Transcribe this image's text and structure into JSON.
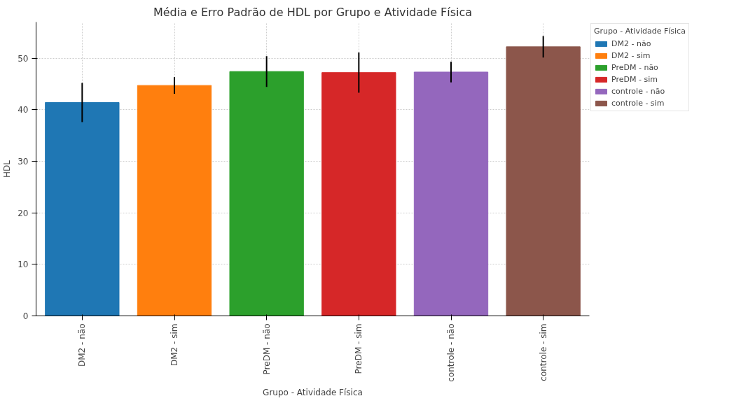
{
  "chart_data": {
    "type": "bar",
    "title": "Média e Erro Padrão de HDL por Grupo e Atividade Física",
    "xlabel": "Grupo - Atividade Física",
    "ylabel": "HDL",
    "legend_title": "Grupo - Atividade Física",
    "categories": [
      "DM2 - não",
      "DM2 - sim",
      "PreDM - não",
      "PreDM - sim",
      "controle - não",
      "controle - sim"
    ],
    "series": [
      {
        "name": "DM2 - não",
        "color": "#1f77b4",
        "values": [
          41.4,
          null,
          null,
          null,
          null,
          null
        ],
        "errors": [
          3.8,
          null,
          null,
          null,
          null,
          null
        ]
      },
      {
        "name": "DM2 - sim",
        "color": "#ff7f0e",
        "values": [
          null,
          44.7,
          null,
          null,
          null,
          null
        ],
        "errors": [
          null,
          1.6,
          null,
          null,
          null,
          null
        ]
      },
      {
        "name": "PreDM - não",
        "color": "#2ca02c",
        "values": [
          null,
          null,
          47.4,
          null,
          null,
          null
        ],
        "errors": [
          null,
          null,
          3.0,
          null,
          null,
          null
        ]
      },
      {
        "name": "PreDM - sim",
        "color": "#d62728",
        "values": [
          null,
          null,
          null,
          47.2,
          null,
          null
        ],
        "errors": [
          null,
          null,
          null,
          3.9,
          null,
          null
        ]
      },
      {
        "name": "controle - não",
        "color": "#9467bd",
        "values": [
          null,
          null,
          null,
          null,
          47.3,
          null
        ],
        "errors": [
          null,
          null,
          null,
          null,
          2.0,
          null
        ]
      },
      {
        "name": "controle - sim",
        "color": "#8c564b",
        "values": [
          null,
          null,
          null,
          null,
          null,
          52.2
        ],
        "errors": [
          null,
          null,
          null,
          null,
          null,
          2.1
        ]
      }
    ],
    "ylim": [
      0,
      57
    ],
    "yticks": [
      0,
      10,
      20,
      30,
      40,
      50
    ],
    "grid": true,
    "legend": "top right"
  }
}
